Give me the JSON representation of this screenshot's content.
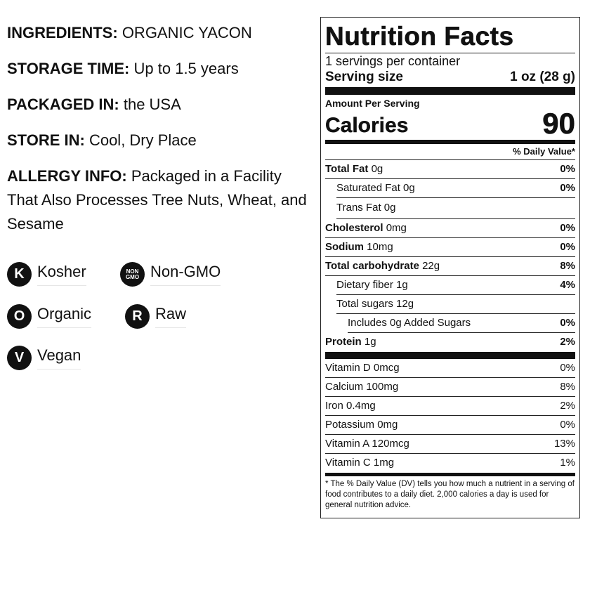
{
  "info": {
    "ingredients_label": "INGREDIENTS:",
    "ingredients_value": "ORGANIC YACON",
    "storage_label": "STORAGE TIME:",
    "storage_value": "Up to 1.5 years",
    "packaged_label": "PACKAGED IN:",
    "packaged_value": "the USA",
    "store_label": "STORE IN:",
    "store_value": "Cool, Dry Place",
    "allergy_label": "ALLERGY INFO:",
    "allergy_value": "Packaged in a Facility That Also Processes Tree Nuts, Wheat, and Sesame"
  },
  "badges": {
    "kosher": {
      "letter": "K",
      "label": "Kosher"
    },
    "nongmo": {
      "line1": "NON",
      "line2": "GMO",
      "label": "Non-GMO"
    },
    "organic": {
      "letter": "O",
      "label": "Organic"
    },
    "raw": {
      "letter": "R",
      "label": "Raw"
    },
    "vegan": {
      "letter": "V",
      "label": "Vegan"
    }
  },
  "nutrition": {
    "title": "Nutrition Facts",
    "servings": "1 servings per container",
    "serving_size_label": "Serving size",
    "serving_size_value": "1 oz (28 g)",
    "amount_per_serving": "Amount Per Serving",
    "calories_label": "Calories",
    "calories_value": "90",
    "dv_header": "% Daily Value*",
    "total_fat": {
      "label": "Total Fat",
      "amount": "0g",
      "pct": "0%"
    },
    "saturated_fat": {
      "label": "Saturated Fat 0g",
      "pct": "0%"
    },
    "trans_fat": {
      "label": "Trans Fat 0g"
    },
    "cholesterol": {
      "label": "Cholesterol",
      "amount": "0mg",
      "pct": "0%"
    },
    "sodium": {
      "label": "Sodium",
      "amount": "10mg",
      "pct": "0%"
    },
    "total_carb": {
      "label": "Total carbohydrate",
      "amount": "22g",
      "pct": "8%"
    },
    "dietary_fiber": {
      "label": "Dietary fiber 1g",
      "pct": "4%"
    },
    "total_sugars": {
      "label": "Total sugars 12g"
    },
    "added_sugars": {
      "label": "Includes 0g Added Sugars",
      "pct": "0%"
    },
    "protein": {
      "label": "Protein",
      "amount": "1g",
      "pct": "2%"
    },
    "vitamins": [
      {
        "label": "Vitamin D 0mcg",
        "pct": "0%"
      },
      {
        "label": "Calcium 100mg",
        "pct": "8%"
      },
      {
        "label": "Iron 0.4mg",
        "pct": "2%"
      },
      {
        "label": "Potassium 0mg",
        "pct": "0%"
      },
      {
        "label": "Vitamin A 120mcg",
        "pct": "13%"
      },
      {
        "label": "Vitamin C 1mg",
        "pct": "1%"
      }
    ],
    "footnote": "* The % Daily Value (DV) tells you how much a nutrient in a serving of food contributes to a daily diet. 2,000 calories a day is used for general nutrition advice."
  }
}
